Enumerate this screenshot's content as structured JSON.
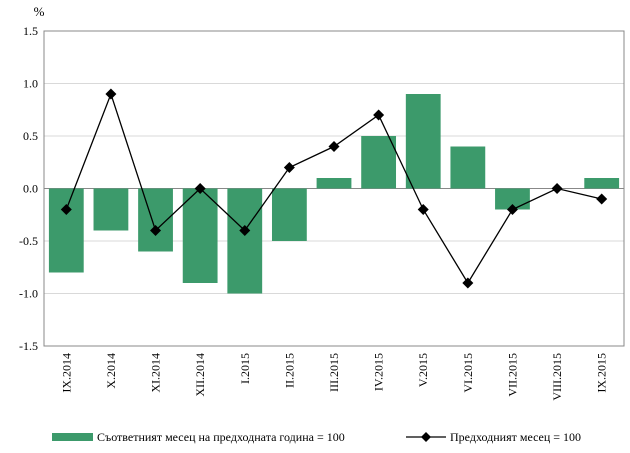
{
  "chart_data": {
    "type": "bar",
    "categories": [
      "IX.2014",
      "X.2014",
      "XI.2014",
      "XII.2014",
      "I.2015",
      "II.2015",
      "III.2015",
      "IV.2015",
      "V.2015",
      "VI.2015",
      "VII.2015",
      "VIII.2015",
      "IX.2015"
    ],
    "series": [
      {
        "name": "Съответният месец на предходната година = 100",
        "type": "bar",
        "color": "#3c9a6b",
        "values": [
          -0.8,
          -0.4,
          -0.6,
          -0.9,
          -1.0,
          -0.5,
          0.1,
          0.5,
          0.9,
          0.4,
          -0.2,
          0.0,
          0.1
        ]
      },
      {
        "name": "Предходният месец = 100",
        "type": "line",
        "color": "#000000",
        "marker": "diamond",
        "values": [
          -0.2,
          0.9,
          -0.4,
          0.0,
          -0.4,
          0.2,
          0.4,
          0.7,
          -0.2,
          -0.9,
          -0.2,
          0.0,
          -0.1
        ]
      }
    ],
    "ylabel": "%",
    "ylim": [
      -1.5,
      1.5
    ],
    "yticks": [
      1.5,
      1.0,
      0.5,
      0.0,
      -0.5,
      -1.0,
      -1.5
    ],
    "ytick_labels": [
      "1.5",
      "1.0",
      "0.5",
      "0.0",
      "-0.5",
      "-1.0",
      "-1.5"
    ],
    "grid": true,
    "legend_position": "bottom"
  }
}
